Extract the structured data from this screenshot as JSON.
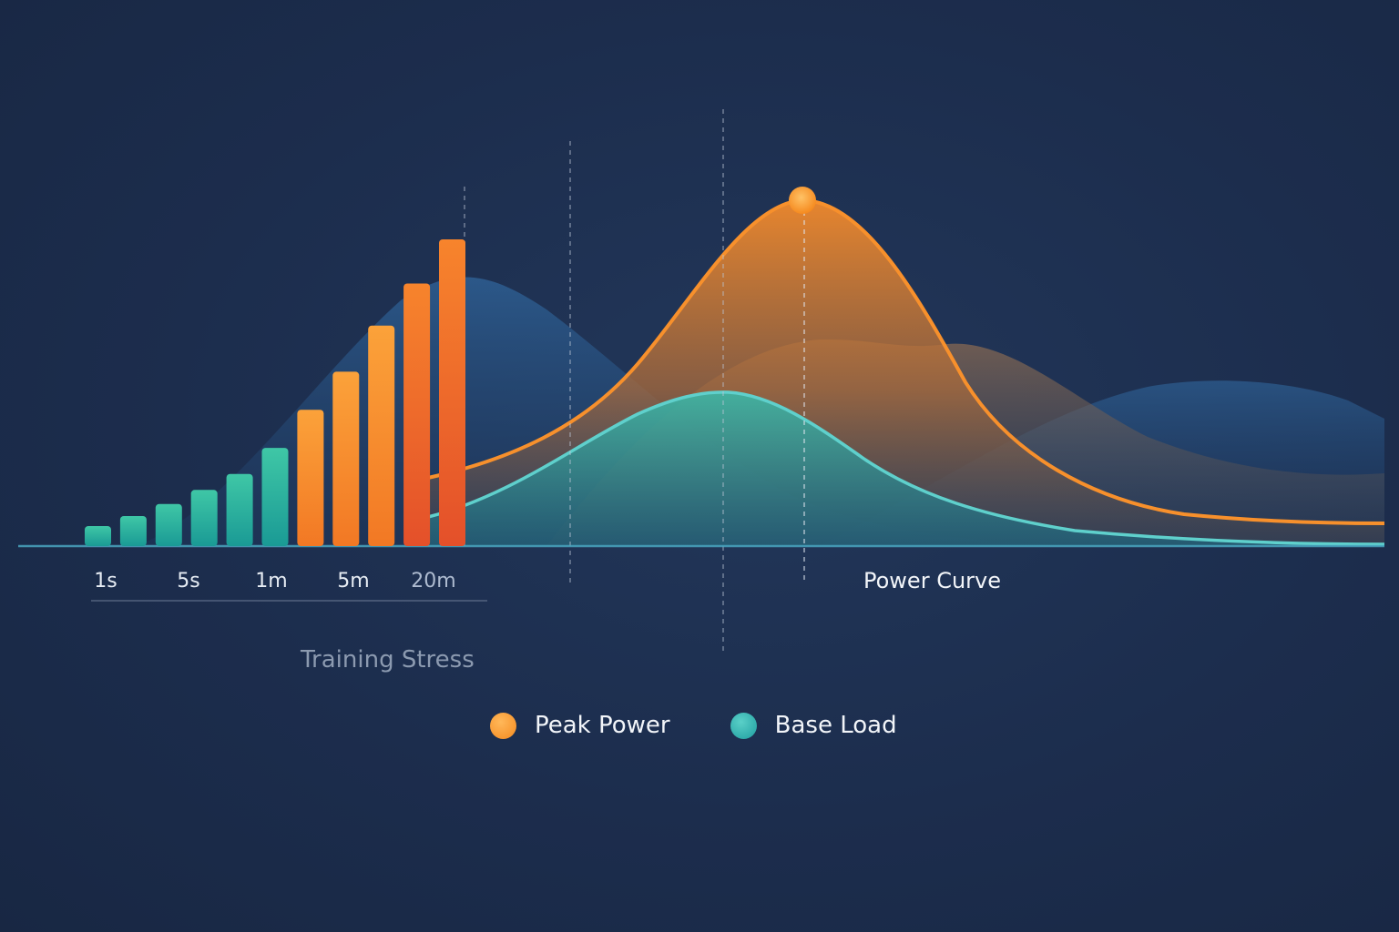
{
  "chart_data": {
    "type": "bar",
    "categories": [
      "1s",
      "5s",
      "1m",
      "5m",
      "20m"
    ],
    "bar_values": [
      1.0,
      1.5,
      2.1,
      2.8,
      3.6,
      4.9,
      6.8,
      8.7,
      11.0,
      13.1,
      15.3
    ],
    "captions": {
      "left": "Training Stress",
      "right": "Power Curve"
    },
    "series": [
      {
        "name": "Peak Power",
        "color": "#f7902c"
      },
      {
        "name": "Base Load",
        "color": "#2fb3b0"
      }
    ],
    "curves": {
      "peak_power_peak_index": 0.6,
      "base_load_peak_index": 0.35
    },
    "colors": {
      "background": "#1c2d4d",
      "teal": "#2fb3b0",
      "orange": "#f7902c",
      "orange_dark": "#e8582a",
      "blue": "#2c5a8e"
    }
  }
}
